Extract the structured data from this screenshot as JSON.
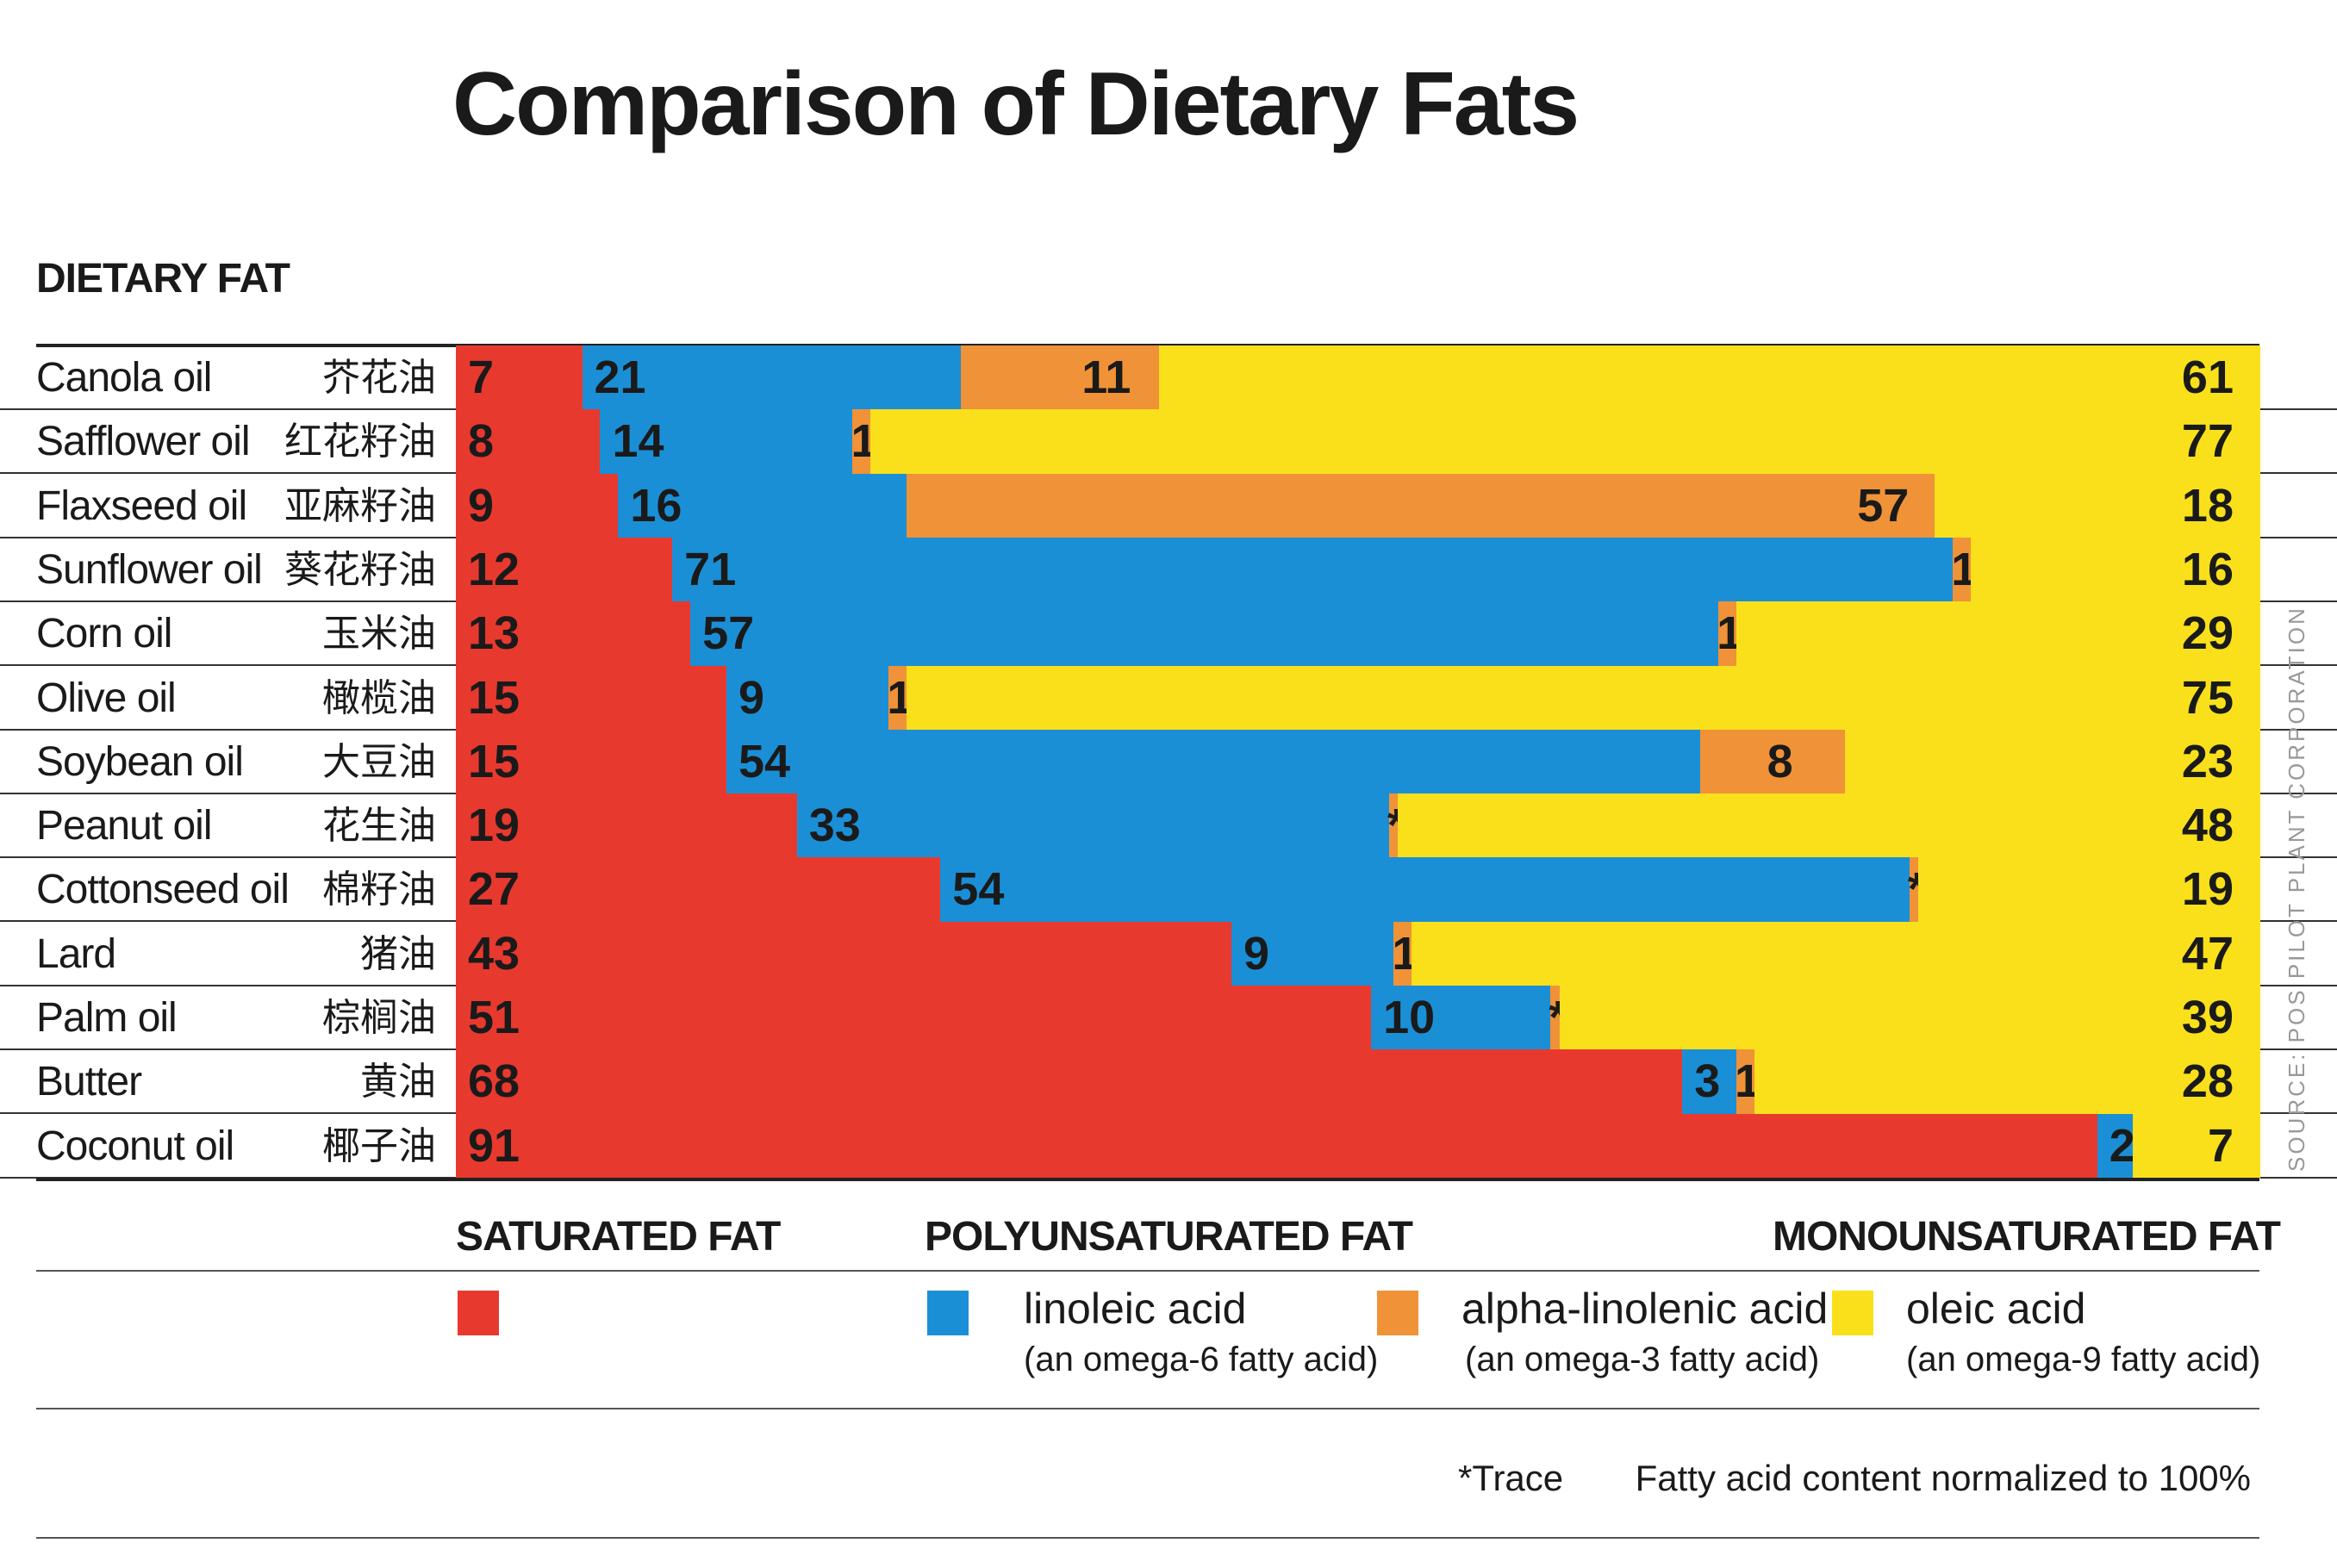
{
  "chart_data": {
    "type": "bar",
    "orientation": "horizontal",
    "stacked": true,
    "normalized_total": 100,
    "title": "Comparison of Dietary Fats",
    "ylabel": "DIETARY FAT",
    "xlim": [
      0,
      100
    ],
    "series_order": [
      "saturated",
      "linoleic",
      "alpha_linolenic",
      "oleic"
    ],
    "colors": {
      "saturated": "#e8392f",
      "linoleic": "#1b8fd6",
      "alpha_linolenic": "#f09237",
      "oleic": "#f9e01b"
    },
    "categories": [
      {
        "en": "Canola oil",
        "zh": "芥花油",
        "saturated": 7,
        "linoleic": 21,
        "alpha_linolenic": 11,
        "alpha_label": "11",
        "oleic": 61
      },
      {
        "en": "Safflower oil",
        "zh": "红花籽油",
        "saturated": 8,
        "linoleic": 14,
        "alpha_linolenic": 1,
        "alpha_label": "1",
        "oleic": 77
      },
      {
        "en": "Flaxseed oil",
        "zh": "亚麻籽油",
        "saturated": 9,
        "linoleic": 16,
        "alpha_linolenic": 57,
        "alpha_label": "57",
        "oleic": 18
      },
      {
        "en": "Sunflower oil",
        "zh": "葵花籽油",
        "saturated": 12,
        "linoleic": 71,
        "alpha_linolenic": 1,
        "alpha_label": "1",
        "oleic": 16
      },
      {
        "en": "Corn oil",
        "zh": "玉米油",
        "saturated": 13,
        "linoleic": 57,
        "alpha_linolenic": 1,
        "alpha_label": "1",
        "oleic": 29
      },
      {
        "en": "Olive oil",
        "zh": "橄榄油",
        "saturated": 15,
        "linoleic": 9,
        "alpha_linolenic": 1,
        "alpha_label": "1",
        "oleic": 75
      },
      {
        "en": "Soybean oil",
        "zh": "大豆油",
        "saturated": 15,
        "linoleic": 54,
        "alpha_linolenic": 8,
        "alpha_label": "8",
        "oleic": 23
      },
      {
        "en": "Peanut oil",
        "zh": "花生油",
        "saturated": 19,
        "linoleic": 33,
        "alpha_linolenic": 0.5,
        "alpha_label": "*",
        "oleic": 48
      },
      {
        "en": "Cottonseed oil",
        "zh": "棉籽油",
        "saturated": 27,
        "linoleic": 54,
        "alpha_linolenic": 0.5,
        "alpha_label": "*",
        "oleic": 19
      },
      {
        "en": "Lard",
        "zh": "猪油",
        "saturated": 43,
        "linoleic": 9,
        "alpha_linolenic": 1,
        "alpha_label": "1",
        "oleic": 47
      },
      {
        "en": "Palm oil",
        "zh": "棕榈油",
        "saturated": 51,
        "linoleic": 10,
        "alpha_linolenic": 0.5,
        "alpha_label": "*",
        "oleic": 39
      },
      {
        "en": "Butter",
        "zh": "黄油",
        "saturated": 68,
        "linoleic": 3,
        "alpha_linolenic": 1,
        "alpha_label": "1",
        "oleic": 28
      },
      {
        "en": "Coconut oil",
        "zh": "椰子油",
        "saturated": 91,
        "linoleic": 2,
        "alpha_linolenic": 0,
        "alpha_label": "",
        "oleic": 7
      }
    ],
    "legend": {
      "saturated_heading": "SATURATED FAT",
      "poly_heading": "POLYUNSATURATED FAT",
      "mono_heading": "MONOUNSATURATED FAT",
      "linoleic_name": "linoleic acid",
      "linoleic_sub": "(an omega-6 fatty acid)",
      "alpha_name": "alpha-linolenic acid",
      "alpha_sub": "(an omega-3 fatty acid)",
      "oleic_name": "oleic acid",
      "oleic_sub": "(an omega-9 fatty acid)"
    },
    "footnotes": {
      "trace": "*Trace",
      "normalized": "Fatty acid content normalized to 100%",
      "source": "SOURCE: POS PILOT PLANT CORPORATION"
    }
  }
}
